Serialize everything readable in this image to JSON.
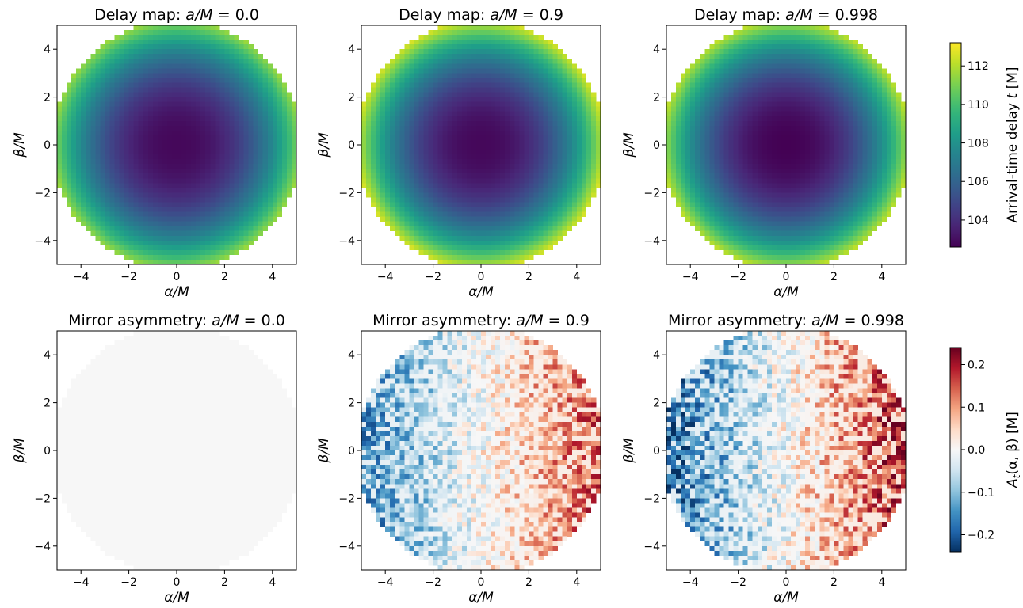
{
  "chart_data": [
    {
      "type": "heatmap",
      "group": "delay",
      "spin": 0.0,
      "title": "Delay map: a/M = 0.0",
      "title_parts": {
        "prefix": "Delay map: ",
        "var": "a/M",
        "value": "0.0"
      },
      "xlabel": "α/M",
      "ylabel": "β/M",
      "xlim": [
        -5,
        5
      ],
      "ylim": [
        -5,
        5
      ],
      "xticks": [
        -4,
        -2,
        0,
        2,
        4
      ],
      "yticks": [
        -4,
        -2,
        0,
        2,
        4
      ],
      "grid": false,
      "colormap": "viridis",
      "value_range": [
        102.6,
        113.2
      ],
      "field": {
        "model": "radial delay",
        "center_value": 102.8,
        "edge_value": 111.6,
        "disk_radius": 5.2
      }
    },
    {
      "type": "heatmap",
      "group": "delay",
      "spin": 0.9,
      "title": "Delay map: a/M = 0.9",
      "title_parts": {
        "prefix": "Delay map: ",
        "var": "a/M",
        "value": "0.9"
      },
      "xlabel": "α/M",
      "ylabel": "β/M",
      "xlim": [
        -5,
        5
      ],
      "ylim": [
        -5,
        5
      ],
      "xticks": [
        -4,
        -2,
        0,
        2,
        4
      ],
      "yticks": [
        -4,
        -2,
        0,
        2,
        4
      ],
      "grid": false,
      "colormap": "viridis",
      "value_range": [
        102.6,
        113.2
      ],
      "field": {
        "model": "radial delay",
        "center_value": 102.8,
        "edge_value": 112.6,
        "disk_radius": 5.2
      }
    },
    {
      "type": "heatmap",
      "group": "delay",
      "spin": 0.998,
      "title": "Delay map: a/M = 0.998",
      "title_parts": {
        "prefix": "Delay map: ",
        "var": "a/M",
        "value": "0.998"
      },
      "xlabel": "α/M",
      "ylabel": "β/M",
      "xlim": [
        -5,
        5
      ],
      "ylim": [
        -5,
        5
      ],
      "xticks": [
        -4,
        -2,
        0,
        2,
        4
      ],
      "yticks": [
        -4,
        -2,
        0,
        2,
        4
      ],
      "grid": false,
      "colormap": "viridis",
      "value_range": [
        102.6,
        113.2
      ],
      "field": {
        "model": "radial delay",
        "center_value": 102.6,
        "edge_value": 112.2,
        "disk_radius": 5.2
      }
    },
    {
      "type": "heatmap",
      "group": "asymmetry",
      "spin": 0.0,
      "title": "Mirror asymmetry: a/M = 0.0",
      "title_parts": {
        "prefix": "Mirror asymmetry: ",
        "var": "a/M",
        "value": "0.0"
      },
      "xlabel": "α/M",
      "ylabel": "β/M",
      "xlim": [
        -5,
        5
      ],
      "ylim": [
        -5,
        5
      ],
      "xticks": [
        -4,
        -2,
        0,
        2,
        4
      ],
      "yticks": [
        -4,
        -2,
        0,
        2,
        4
      ],
      "grid": false,
      "colormap": "RdBu_r",
      "value_range": [
        -0.24,
        0.24
      ],
      "field": {
        "model": "antisymmetric in alpha",
        "gradient_per_alpha": 0.0,
        "max_abs_value": 0.0,
        "noise_amplitude": 0.0,
        "disk_radius": 5.2
      }
    },
    {
      "type": "heatmap",
      "group": "asymmetry",
      "spin": 0.9,
      "title": "Mirror asymmetry: a/M = 0.9",
      "title_parts": {
        "prefix": "Mirror asymmetry: ",
        "var": "a/M",
        "value": "0.9"
      },
      "xlabel": "α/M",
      "ylabel": "β/M",
      "xlim": [
        -5,
        5
      ],
      "ylim": [
        -5,
        5
      ],
      "xticks": [
        -4,
        -2,
        0,
        2,
        4
      ],
      "yticks": [
        -4,
        -2,
        0,
        2,
        4
      ],
      "grid": false,
      "colormap": "RdBu_r",
      "value_range": [
        -0.24,
        0.24
      ],
      "field": {
        "model": "antisymmetric in alpha",
        "gradient_per_alpha": 0.033,
        "max_abs_value": 0.21,
        "noise_amplitude": 0.07,
        "disk_radius": 5.2
      }
    },
    {
      "type": "heatmap",
      "group": "asymmetry",
      "spin": 0.998,
      "title": "Mirror asymmetry: a/M = 0.998",
      "title_parts": {
        "prefix": "Mirror asymmetry: ",
        "var": "a/M",
        "value": "0.998"
      },
      "xlabel": "α/M",
      "ylabel": "β/M",
      "xlim": [
        -5,
        5
      ],
      "ylim": [
        -5,
        5
      ],
      "xticks": [
        -4,
        -2,
        0,
        2,
        4
      ],
      "yticks": [
        -4,
        -2,
        0,
        2,
        4
      ],
      "grid": false,
      "colormap": "RdBu_r",
      "value_range": [
        -0.24,
        0.24
      ],
      "field": {
        "model": "antisymmetric in alpha",
        "gradient_per_alpha": 0.04,
        "max_abs_value": 0.24,
        "noise_amplitude": 0.08,
        "disk_radius": 5.2
      }
    }
  ],
  "colorbars": [
    {
      "group": "delay",
      "colormap": "viridis",
      "label": "Arrival-time delay t [M]",
      "label_parts": {
        "text": "Arrival-time delay ",
        "var": "t",
        "unit": "[M]"
      },
      "vmin": 102.6,
      "vmax": 113.2,
      "ticks": [
        104,
        106,
        108,
        110,
        112
      ],
      "tick_labels": [
        "104",
        "106",
        "108",
        "110",
        "112"
      ]
    },
    {
      "group": "asymmetry",
      "colormap": "RdBu_r",
      "label": "A_t(α, β) [M]",
      "label_parts": {
        "var": "A",
        "sub": "t",
        "args": "(α, β)",
        "unit": "[M]"
      },
      "vmin": -0.24,
      "vmax": 0.24,
      "ticks": [
        -0.2,
        -0.1,
        0.0,
        0.1,
        0.2
      ],
      "tick_labels": [
        "−0.2",
        "−0.1",
        "0.0",
        "0.1",
        "0.2"
      ]
    }
  ],
  "colors": {
    "viridis": [
      "#440154",
      "#482878",
      "#3e4989",
      "#31688e",
      "#26828e",
      "#1f9e89",
      "#35b779",
      "#6ece58",
      "#b5de2b",
      "#fde725"
    ],
    "RdBu_r": [
      "#053061",
      "#2166ac",
      "#4393c3",
      "#92c5de",
      "#d1e5f0",
      "#f7f7f7",
      "#fddbc7",
      "#f4a582",
      "#d6604d",
      "#b2182b",
      "#67001f"
    ]
  }
}
